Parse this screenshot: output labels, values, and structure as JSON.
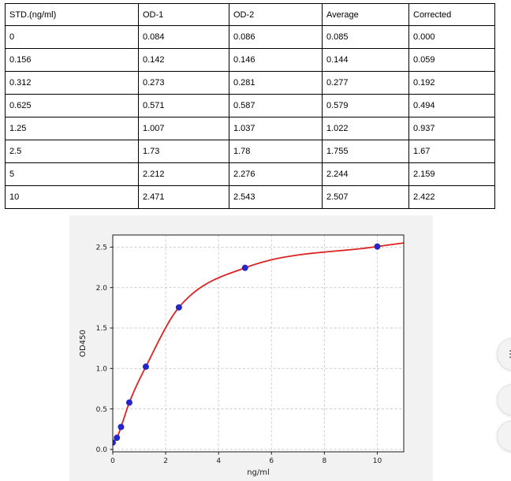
{
  "table": {
    "headers": [
      "STD.(ng/ml)",
      "OD-1",
      "OD-2",
      "Average",
      "Corrected"
    ],
    "rows": [
      [
        "0",
        "0.084",
        "0.086",
        "0.085",
        "0.000"
      ],
      [
        "0.156",
        "0.142",
        "0.146",
        "0.144",
        "0.059"
      ],
      [
        "0.312",
        "0.273",
        "0.281",
        "0.277",
        "0.192"
      ],
      [
        "0.625",
        "0.571",
        "0.587",
        "0.579",
        "0.494"
      ],
      [
        "1.25",
        "1.007",
        "1.037",
        "1.022",
        "0.937"
      ],
      [
        "2.5",
        "1.73",
        "1.78",
        "1.755",
        "1.67"
      ],
      [
        "5",
        "2.212",
        "2.276",
        "2.244",
        "2.159"
      ],
      [
        "10",
        "2.471",
        "2.543",
        "2.507",
        "2.422"
      ]
    ]
  },
  "chart_data": {
    "type": "scatter",
    "title": "",
    "xlabel": "ng/ml",
    "ylabel": "OD450",
    "x": [
      0,
      0.156,
      0.312,
      0.625,
      1.25,
      2.5,
      5,
      10
    ],
    "y": [
      0.085,
      0.144,
      0.277,
      0.579,
      1.022,
      1.755,
      2.244,
      2.507
    ],
    "curve": "red smooth fit curve through the blue data points, reaching ~2.54 at x=11",
    "xlim": [
      0,
      11
    ],
    "ylim": [
      -0.03,
      2.65
    ],
    "xticks": [
      0,
      2,
      4,
      6,
      8,
      10
    ],
    "xtick_labels": [
      "0",
      "2",
      "4",
      "6",
      "8",
      "10"
    ],
    "yticks": [
      0,
      0.5,
      1,
      1.5,
      2,
      2.5
    ],
    "ytick_labels": [
      "0.0",
      "0.5",
      "1.0",
      "1.5",
      "2.0",
      "2.5"
    ],
    "grid": true,
    "legend": "none",
    "curve_color": "#dd2222",
    "point_color": "#2525c8",
    "grid_color": "#c9c9c9",
    "figure_bg": "#f2f2f2",
    "plot_bg": "#ffffff"
  },
  "floating_buttons": {
    "icons": [
      "list-lines-icon",
      "square-dot-icon",
      "square-dot-icon"
    ]
  }
}
